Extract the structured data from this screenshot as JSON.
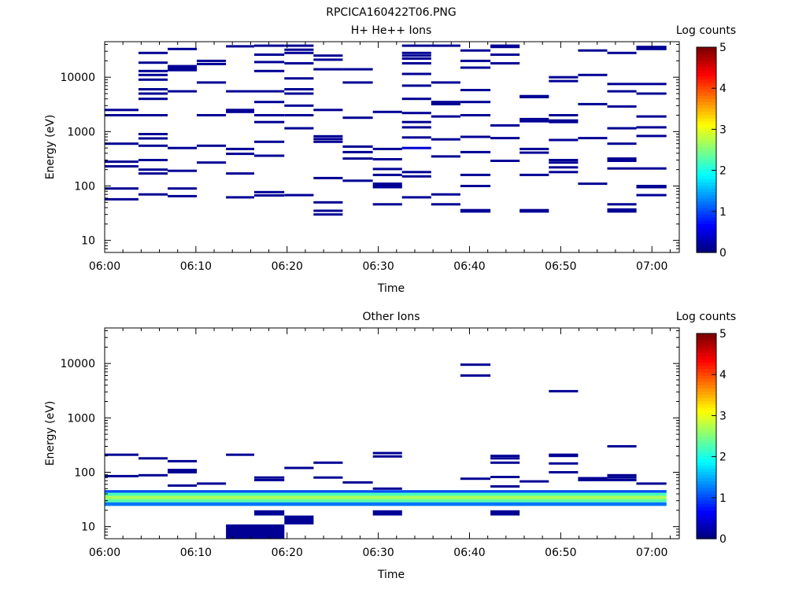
{
  "figure_title": "RPCICA160422T06.PNG",
  "chart_data": [
    {
      "type": "heatmap",
      "title": "H+ He++ Ions",
      "xlabel": "Time",
      "ylabel": "Energy (eV)",
      "colorbar_label": "Log counts",
      "colorbar_ticks": [
        "0",
        "1",
        "2",
        "3",
        "4",
        "5"
      ],
      "xticks": [
        "06:00",
        "06:10",
        "06:20",
        "06:30",
        "06:40",
        "06:50",
        "07:00"
      ],
      "yticks": [
        "10",
        "100",
        "1000",
        "10000"
      ],
      "ylog": true,
      "ylim": [
        6,
        45000
      ],
      "xlim_minutes": [
        0,
        63
      ],
      "colormap": "jet",
      "clim": [
        0,
        5
      ],
      "time_bins_minutes": [
        0,
        3.7,
        6.9,
        10.1,
        13.3,
        16.4,
        19.7,
        22.9,
        26.1,
        29.4,
        32.6,
        35.8,
        39.0,
        42.3,
        45.5,
        48.7,
        51.9,
        55.1,
        58.3,
        61.6
      ],
      "cells": [
        {
          "col": 0,
          "e": [
            2500,
            2000,
            600,
            280,
            230,
            90,
            57
          ],
          "v": 0.1
        },
        {
          "col": 1,
          "e": [
            28000,
            18500,
            13000,
            11000,
            9000,
            6000,
            5000,
            4000,
            2000,
            900,
            750,
            550,
            300,
            200,
            170,
            70
          ],
          "v": 0.1
        },
        {
          "col": 2,
          "e": [
            33000,
            16000,
            14500,
            13500,
            5500,
            500,
            190,
            90,
            65
          ],
          "v": 0.1
        },
        {
          "col": 3,
          "e": [
            20000,
            17500,
            8000,
            2000,
            550,
            270
          ],
          "v": 0.1
        },
        {
          "col": 4,
          "e": [
            37000,
            5500,
            2500,
            2300,
            480,
            390,
            170,
            62
          ],
          "v": 0.1
        },
        {
          "col": 5,
          "e": [
            38000,
            26000,
            19000,
            13000,
            5500,
            3500,
            2000,
            1500,
            650,
            360,
            77,
            67
          ],
          "v": 0.1
        },
        {
          "col": 6,
          "e": [
            38000,
            32000,
            28000,
            18000,
            9500,
            6000,
            5000,
            3000,
            2000,
            1150,
            68
          ],
          "v": 0.1
        },
        {
          "col": 7,
          "e": [
            25000,
            21000,
            14000,
            2500,
            820,
            730,
            650,
            140,
            50,
            35,
            30
          ],
          "v": 0.1
        },
        {
          "col": 8,
          "e": [
            14000,
            8000,
            1800,
            530,
            420,
            320,
            125
          ],
          "v": 0.1
        },
        {
          "col": 9,
          "e": [
            2300,
            480,
            310,
            205,
            160,
            110,
            100,
            95,
            46
          ],
          "v": 0.1
        },
        {
          "col": 10,
          "e": [
            38000,
            28000,
            25000,
            22000,
            18000,
            11500,
            7000,
            4000,
            2200,
            1500,
            1200,
            780,
            180,
            150,
            62
          ],
          "v": 0.1
        },
        {
          "col": 10,
          "e": [
            500
          ],
          "v": 0.4
        },
        {
          "col": 11,
          "e": [
            38000,
            8000,
            3500,
            3200,
            1900,
            720,
            350,
            70,
            46
          ],
          "v": 0.1
        },
        {
          "col": 12,
          "e": [
            31000,
            20000,
            15000,
            5800,
            3500,
            2000,
            800,
            420,
            160,
            100,
            36,
            34
          ],
          "v": 0.1
        },
        {
          "col": 13,
          "e": [
            38000,
            36000,
            26000,
            18000,
            1300,
            760,
            290
          ],
          "v": 0.1
        },
        {
          "col": 14,
          "e": [
            4500,
            4300,
            1700,
            1550,
            480,
            410,
            160,
            36,
            34
          ],
          "v": 0.1
        },
        {
          "col": 15,
          "e": [
            10000,
            8500,
            2000,
            1600,
            1500,
            700,
            300,
            270,
            220,
            180
          ],
          "v": 0.1
        },
        {
          "col": 16,
          "e": [
            31000,
            11000,
            3200,
            760,
            110
          ],
          "v": 0.1
        },
        {
          "col": 17,
          "e": [
            28000,
            7500,
            5500,
            2900,
            1150,
            600,
            320,
            290,
            210,
            46,
            37,
            34
          ],
          "v": 0.1
        },
        {
          "col": 18,
          "e": [
            36000,
            33000,
            7500,
            5000,
            1900,
            1200,
            830,
            210,
            100,
            95,
            68
          ],
          "v": 0.1
        }
      ]
    },
    {
      "type": "heatmap",
      "title": "Other Ions",
      "xlabel": "Time",
      "ylabel": "Energy (eV)",
      "colorbar_label": "Log counts",
      "colorbar_ticks": [
        "0",
        "1",
        "2",
        "3",
        "4",
        "5"
      ],
      "xticks": [
        "06:00",
        "06:10",
        "06:20",
        "06:30",
        "06:40",
        "06:50",
        "07:00"
      ],
      "yticks": [
        "10",
        "100",
        "1000",
        "10000"
      ],
      "ylog": true,
      "ylim": [
        6,
        45000
      ],
      "xlim_minutes": [
        0,
        63
      ],
      "colormap": "jet",
      "clim": [
        0,
        5
      ],
      "time_bins_minutes": [
        0,
        3.7,
        6.9,
        10.1,
        13.3,
        16.4,
        19.7,
        22.9,
        26.1,
        29.4,
        32.6,
        35.8,
        39.0,
        42.3,
        45.5,
        48.7,
        51.9,
        55.1,
        58.3,
        61.6
      ],
      "cells": [
        {
          "col": 0,
          "e": [
            210,
            85
          ],
          "v": 0.1
        },
        {
          "col": 1,
          "e": [
            180,
            88
          ],
          "v": 0.1
        },
        {
          "col": 2,
          "e": [
            160,
            110,
            100,
            57
          ],
          "v": 0.1
        },
        {
          "col": 3,
          "e": [
            62
          ],
          "v": 0.1
        },
        {
          "col": 4,
          "e": [
            210
          ],
          "v": 0.1
        },
        {
          "col": 5,
          "e": [
            80,
            72
          ],
          "v": 0.1
        },
        {
          "col": 6,
          "e": [
            120
          ],
          "v": 0.1
        },
        {
          "col": 7,
          "e": [
            150,
            80
          ],
          "v": 0.1
        },
        {
          "col": 8,
          "e": [
            65
          ],
          "v": 0.1
        },
        {
          "col": 9,
          "e": [
            225,
            195,
            50
          ],
          "v": 0.1
        },
        {
          "col": 12,
          "e": [
            9500,
            6000,
            76
          ],
          "v": 0.1
        },
        {
          "col": 13,
          "e": [
            200,
            180,
            150,
            82,
            55
          ],
          "v": 0.1
        },
        {
          "col": 14,
          "e": [
            68
          ],
          "v": 0.1
        },
        {
          "col": 15,
          "e": [
            3100,
            210,
            200,
            145,
            100
          ],
          "v": 0.1
        },
        {
          "col": 16,
          "e": [
            78,
            72
          ],
          "v": 0.1
        },
        {
          "col": 17,
          "e": [
            300,
            88,
            80,
            72
          ],
          "v": 0.1
        },
        {
          "col": 18,
          "e": [
            62
          ],
          "v": 0.1
        }
      ],
      "blocks": [
        {
          "c0": 0,
          "c1": 19,
          "e0": 42,
          "e1": 47,
          "v": 1.0
        },
        {
          "c0": 0,
          "c1": 19,
          "e0": 37,
          "e1": 42,
          "v": 2.2
        },
        {
          "c0": 0,
          "c1": 19,
          "e0": 32,
          "e1": 37,
          "v": 2.7
        },
        {
          "c0": 0,
          "c1": 19,
          "e0": 28,
          "e1": 32,
          "v": 2.3
        },
        {
          "c0": 0,
          "c1": 19,
          "e0": 24,
          "e1": 28,
          "v": 1.2
        },
        {
          "c0": 4,
          "c1": 6,
          "e0": 6,
          "e1": 11,
          "v": 0.1
        },
        {
          "c0": 6,
          "c1": 7,
          "e0": 11,
          "e1": 16,
          "v": 0.1
        },
        {
          "c0": 5,
          "c1": 6,
          "e0": 16,
          "e1": 20,
          "v": 0.1
        },
        {
          "c0": 9,
          "c1": 10,
          "e0": 16,
          "e1": 20,
          "v": 0.1
        },
        {
          "c0": 13,
          "c1": 14,
          "e0": 16,
          "e1": 20,
          "v": 0.1
        }
      ]
    }
  ]
}
